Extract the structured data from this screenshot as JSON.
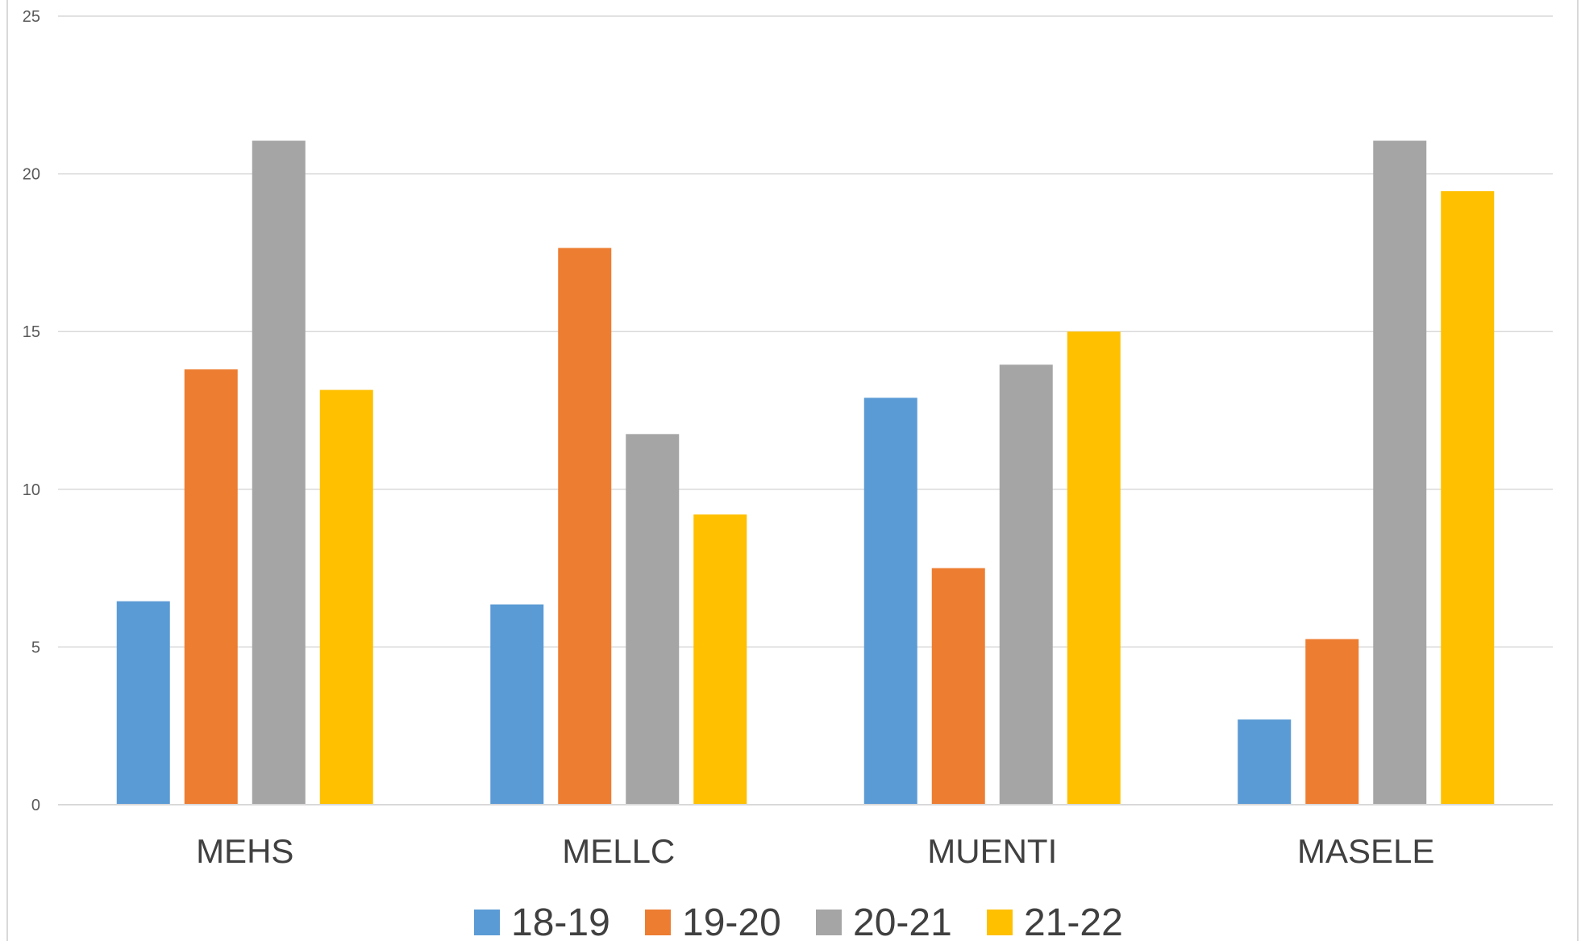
{
  "chart_data": {
    "type": "bar",
    "title": "",
    "xlabel": "",
    "ylabel": "",
    "ylim": [
      0,
      25
    ],
    "yticks": [
      "0",
      "5",
      "10",
      "15",
      "20",
      "25"
    ],
    "grid": true,
    "legend_position": "bottom",
    "categories": [
      "MEHS",
      "MELLC",
      "MUENTI",
      "MASELE"
    ],
    "series": [
      {
        "name": "18-19",
        "color": "#5B9BD5",
        "values": [
          6.45,
          6.35,
          12.9,
          2.7
        ]
      },
      {
        "name": "19-20",
        "color": "#ED7D31",
        "values": [
          13.8,
          17.65,
          7.5,
          5.25
        ]
      },
      {
        "name": "20-21",
        "color": "#A5A5A5",
        "values": [
          21.05,
          11.75,
          13.95,
          21.05
        ]
      },
      {
        "name": "21-22",
        "color": "#FFC000",
        "values": [
          13.15,
          9.2,
          15.0,
          19.45
        ]
      }
    ]
  }
}
